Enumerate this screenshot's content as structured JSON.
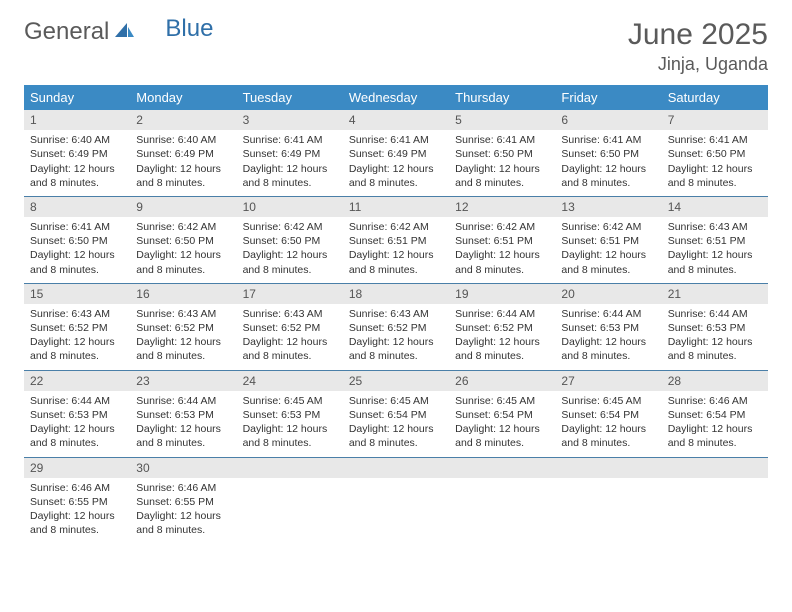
{
  "logo": {
    "part1": "General",
    "part2": "Blue"
  },
  "title": {
    "month": "June 2025",
    "location": "Jinja, Uganda"
  },
  "colors": {
    "header_bg": "#3b8ac4",
    "header_text": "#ffffff",
    "daynum_bg": "#e8e8e8",
    "daynum_text": "#555555",
    "body_text": "#333333",
    "divider": "#4a7fa8",
    "logo_gray": "#5a5a5a",
    "logo_blue": "#2f6fa8"
  },
  "day_names": [
    "Sunday",
    "Monday",
    "Tuesday",
    "Wednesday",
    "Thursday",
    "Friday",
    "Saturday"
  ],
  "labels": {
    "sunrise": "Sunrise:",
    "sunset": "Sunset:",
    "daylight": "Daylight:"
  },
  "weeks": [
    [
      {
        "n": "1",
        "sr": "6:40 AM",
        "ss": "6:49 PM",
        "dl": "12 hours and 8 minutes."
      },
      {
        "n": "2",
        "sr": "6:40 AM",
        "ss": "6:49 PM",
        "dl": "12 hours and 8 minutes."
      },
      {
        "n": "3",
        "sr": "6:41 AM",
        "ss": "6:49 PM",
        "dl": "12 hours and 8 minutes."
      },
      {
        "n": "4",
        "sr": "6:41 AM",
        "ss": "6:49 PM",
        "dl": "12 hours and 8 minutes."
      },
      {
        "n": "5",
        "sr": "6:41 AM",
        "ss": "6:50 PM",
        "dl": "12 hours and 8 minutes."
      },
      {
        "n": "6",
        "sr": "6:41 AM",
        "ss": "6:50 PM",
        "dl": "12 hours and 8 minutes."
      },
      {
        "n": "7",
        "sr": "6:41 AM",
        "ss": "6:50 PM",
        "dl": "12 hours and 8 minutes."
      }
    ],
    [
      {
        "n": "8",
        "sr": "6:41 AM",
        "ss": "6:50 PM",
        "dl": "12 hours and 8 minutes."
      },
      {
        "n": "9",
        "sr": "6:42 AM",
        "ss": "6:50 PM",
        "dl": "12 hours and 8 minutes."
      },
      {
        "n": "10",
        "sr": "6:42 AM",
        "ss": "6:50 PM",
        "dl": "12 hours and 8 minutes."
      },
      {
        "n": "11",
        "sr": "6:42 AM",
        "ss": "6:51 PM",
        "dl": "12 hours and 8 minutes."
      },
      {
        "n": "12",
        "sr": "6:42 AM",
        "ss": "6:51 PM",
        "dl": "12 hours and 8 minutes."
      },
      {
        "n": "13",
        "sr": "6:42 AM",
        "ss": "6:51 PM",
        "dl": "12 hours and 8 minutes."
      },
      {
        "n": "14",
        "sr": "6:43 AM",
        "ss": "6:51 PM",
        "dl": "12 hours and 8 minutes."
      }
    ],
    [
      {
        "n": "15",
        "sr": "6:43 AM",
        "ss": "6:52 PM",
        "dl": "12 hours and 8 minutes."
      },
      {
        "n": "16",
        "sr": "6:43 AM",
        "ss": "6:52 PM",
        "dl": "12 hours and 8 minutes."
      },
      {
        "n": "17",
        "sr": "6:43 AM",
        "ss": "6:52 PM",
        "dl": "12 hours and 8 minutes."
      },
      {
        "n": "18",
        "sr": "6:43 AM",
        "ss": "6:52 PM",
        "dl": "12 hours and 8 minutes."
      },
      {
        "n": "19",
        "sr": "6:44 AM",
        "ss": "6:52 PM",
        "dl": "12 hours and 8 minutes."
      },
      {
        "n": "20",
        "sr": "6:44 AM",
        "ss": "6:53 PM",
        "dl": "12 hours and 8 minutes."
      },
      {
        "n": "21",
        "sr": "6:44 AM",
        "ss": "6:53 PM",
        "dl": "12 hours and 8 minutes."
      }
    ],
    [
      {
        "n": "22",
        "sr": "6:44 AM",
        "ss": "6:53 PM",
        "dl": "12 hours and 8 minutes."
      },
      {
        "n": "23",
        "sr": "6:44 AM",
        "ss": "6:53 PM",
        "dl": "12 hours and 8 minutes."
      },
      {
        "n": "24",
        "sr": "6:45 AM",
        "ss": "6:53 PM",
        "dl": "12 hours and 8 minutes."
      },
      {
        "n": "25",
        "sr": "6:45 AM",
        "ss": "6:54 PM",
        "dl": "12 hours and 8 minutes."
      },
      {
        "n": "26",
        "sr": "6:45 AM",
        "ss": "6:54 PM",
        "dl": "12 hours and 8 minutes."
      },
      {
        "n": "27",
        "sr": "6:45 AM",
        "ss": "6:54 PM",
        "dl": "12 hours and 8 minutes."
      },
      {
        "n": "28",
        "sr": "6:46 AM",
        "ss": "6:54 PM",
        "dl": "12 hours and 8 minutes."
      }
    ],
    [
      {
        "n": "29",
        "sr": "6:46 AM",
        "ss": "6:55 PM",
        "dl": "12 hours and 8 minutes."
      },
      {
        "n": "30",
        "sr": "6:46 AM",
        "ss": "6:55 PM",
        "dl": "12 hours and 8 minutes."
      },
      {
        "empty": true
      },
      {
        "empty": true
      },
      {
        "empty": true
      },
      {
        "empty": true
      },
      {
        "empty": true
      }
    ]
  ]
}
